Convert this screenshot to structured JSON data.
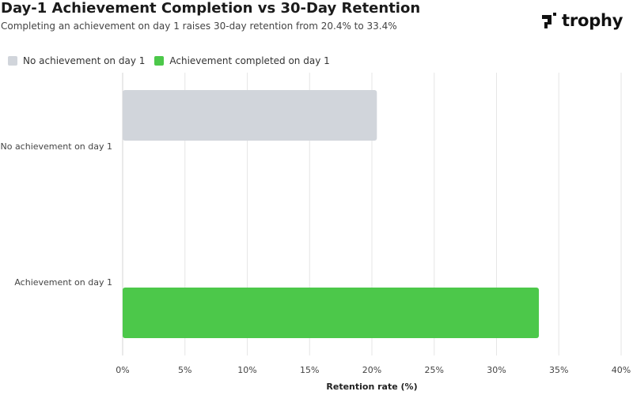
{
  "header": {
    "title": "Day-1 Achievement Completion vs 30-Day Retention",
    "subtitle": "Completing an achievement on day 1 raises 30-day retention from 20.4% to 33.4%"
  },
  "logo": {
    "text": "trophy",
    "icon": "trophy-mark-icon"
  },
  "legend": {
    "items": [
      {
        "label": "No achievement on day 1",
        "color": "#d1d5db"
      },
      {
        "label": "Achievement completed on day 1",
        "color": "#4cc84a"
      }
    ]
  },
  "chart_data": {
    "type": "bar",
    "orientation": "horizontal",
    "categories": [
      "No achievement on day 1",
      "Achievement on day 1"
    ],
    "values": [
      20.4,
      33.4
    ],
    "colors": [
      "#d1d5db",
      "#4cc84a"
    ],
    "xlabel": "Retention rate (%)",
    "xlim": [
      0,
      40
    ],
    "ticks": [
      0,
      5,
      10,
      15,
      20,
      25,
      30,
      35,
      40
    ],
    "tick_labels": [
      "0%",
      "5%",
      "10%",
      "15%",
      "20%",
      "25%",
      "30%",
      "35%",
      "40%"
    ],
    "grid": true,
    "legend_position": "top-left"
  }
}
